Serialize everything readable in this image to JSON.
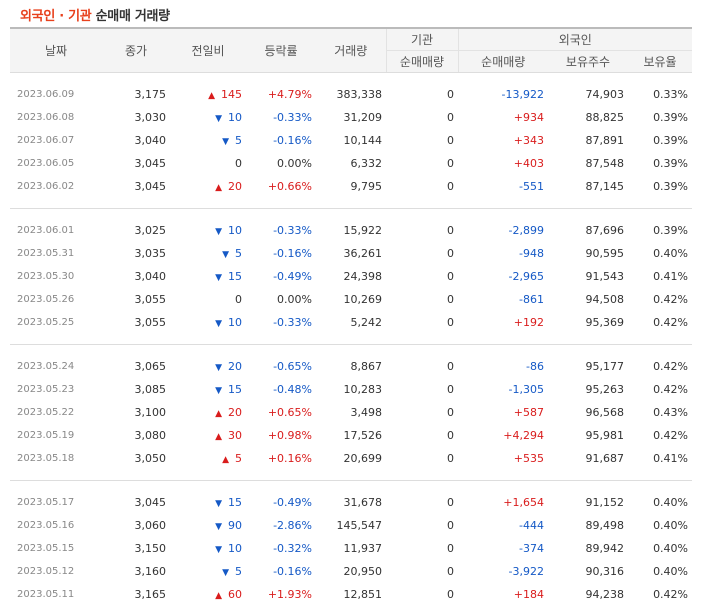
{
  "title": {
    "part1": "외국인 · 기관",
    "part2": "순매매 거래량"
  },
  "headers": {
    "date": "날짜",
    "close": "종가",
    "change": "전일비",
    "rate": "등락률",
    "volume": "거래량",
    "inst_group": "기관",
    "inst_net": "순매매량",
    "foreign_group": "외국인",
    "foreign_net": "순매매량",
    "foreign_hold": "보유주수",
    "foreign_ratio": "보유율"
  },
  "icons": {
    "up": "triangle-up-icon",
    "down": "triangle-down-icon"
  },
  "colors": {
    "up": "#d91c1c",
    "down": "#1559c6",
    "accent": "#e8401c"
  },
  "groups": [
    [
      {
        "date": "2023.06.09",
        "close": "3,175",
        "dir": "up",
        "change": "145",
        "rate": "+4.79%",
        "volume": "383,338",
        "inst": "0",
        "fnet": "-13,922",
        "fhold": "74,903",
        "fratio": "0.33%"
      },
      {
        "date": "2023.06.08",
        "close": "3,030",
        "dir": "down",
        "change": "10",
        "rate": "-0.33%",
        "volume": "31,209",
        "inst": "0",
        "fnet": "+934",
        "fhold": "88,825",
        "fratio": "0.39%"
      },
      {
        "date": "2023.06.07",
        "close": "3,040",
        "dir": "down",
        "change": "5",
        "rate": "-0.16%",
        "volume": "10,144",
        "inst": "0",
        "fnet": "+343",
        "fhold": "87,891",
        "fratio": "0.39%"
      },
      {
        "date": "2023.06.05",
        "close": "3,045",
        "dir": "none",
        "change": "0",
        "rate": "0.00%",
        "volume": "6,332",
        "inst": "0",
        "fnet": "+403",
        "fhold": "87,548",
        "fratio": "0.39%"
      },
      {
        "date": "2023.06.02",
        "close": "3,045",
        "dir": "up",
        "change": "20",
        "rate": "+0.66%",
        "volume": "9,795",
        "inst": "0",
        "fnet": "-551",
        "fhold": "87,145",
        "fratio": "0.39%"
      }
    ],
    [
      {
        "date": "2023.06.01",
        "close": "3,025",
        "dir": "down",
        "change": "10",
        "rate": "-0.33%",
        "volume": "15,922",
        "inst": "0",
        "fnet": "-2,899",
        "fhold": "87,696",
        "fratio": "0.39%"
      },
      {
        "date": "2023.05.31",
        "close": "3,035",
        "dir": "down",
        "change": "5",
        "rate": "-0.16%",
        "volume": "36,261",
        "inst": "0",
        "fnet": "-948",
        "fhold": "90,595",
        "fratio": "0.40%"
      },
      {
        "date": "2023.05.30",
        "close": "3,040",
        "dir": "down",
        "change": "15",
        "rate": "-0.49%",
        "volume": "24,398",
        "inst": "0",
        "fnet": "-2,965",
        "fhold": "91,543",
        "fratio": "0.41%"
      },
      {
        "date": "2023.05.26",
        "close": "3,055",
        "dir": "none",
        "change": "0",
        "rate": "0.00%",
        "volume": "10,269",
        "inst": "0",
        "fnet": "-861",
        "fhold": "94,508",
        "fratio": "0.42%"
      },
      {
        "date": "2023.05.25",
        "close": "3,055",
        "dir": "down",
        "change": "10",
        "rate": "-0.33%",
        "volume": "5,242",
        "inst": "0",
        "fnet": "+192",
        "fhold": "95,369",
        "fratio": "0.42%"
      }
    ],
    [
      {
        "date": "2023.05.24",
        "close": "3,065",
        "dir": "down",
        "change": "20",
        "rate": "-0.65%",
        "volume": "8,867",
        "inst": "0",
        "fnet": "-86",
        "fhold": "95,177",
        "fratio": "0.42%"
      },
      {
        "date": "2023.05.23",
        "close": "3,085",
        "dir": "down",
        "change": "15",
        "rate": "-0.48%",
        "volume": "10,283",
        "inst": "0",
        "fnet": "-1,305",
        "fhold": "95,263",
        "fratio": "0.42%"
      },
      {
        "date": "2023.05.22",
        "close": "3,100",
        "dir": "up",
        "change": "20",
        "rate": "+0.65%",
        "volume": "3,498",
        "inst": "0",
        "fnet": "+587",
        "fhold": "96,568",
        "fratio": "0.43%"
      },
      {
        "date": "2023.05.19",
        "close": "3,080",
        "dir": "up",
        "change": "30",
        "rate": "+0.98%",
        "volume": "17,526",
        "inst": "0",
        "fnet": "+4,294",
        "fhold": "95,981",
        "fratio": "0.42%"
      },
      {
        "date": "2023.05.18",
        "close": "3,050",
        "dir": "up",
        "change": "5",
        "rate": "+0.16%",
        "volume": "20,699",
        "inst": "0",
        "fnet": "+535",
        "fhold": "91,687",
        "fratio": "0.41%"
      }
    ],
    [
      {
        "date": "2023.05.17",
        "close": "3,045",
        "dir": "down",
        "change": "15",
        "rate": "-0.49%",
        "volume": "31,678",
        "inst": "0",
        "fnet": "+1,654",
        "fhold": "91,152",
        "fratio": "0.40%"
      },
      {
        "date": "2023.05.16",
        "close": "3,060",
        "dir": "down",
        "change": "90",
        "rate": "-2.86%",
        "volume": "145,547",
        "inst": "0",
        "fnet": "-444",
        "fhold": "89,498",
        "fratio": "0.40%"
      },
      {
        "date": "2023.05.15",
        "close": "3,150",
        "dir": "down",
        "change": "10",
        "rate": "-0.32%",
        "volume": "11,937",
        "inst": "0",
        "fnet": "-374",
        "fhold": "89,942",
        "fratio": "0.40%"
      },
      {
        "date": "2023.05.12",
        "close": "3,160",
        "dir": "down",
        "change": "5",
        "rate": "-0.16%",
        "volume": "20,950",
        "inst": "0",
        "fnet": "-3,922",
        "fhold": "90,316",
        "fratio": "0.40%"
      },
      {
        "date": "2023.05.11",
        "close": "3,165",
        "dir": "up",
        "change": "60",
        "rate": "+1.93%",
        "volume": "12,851",
        "inst": "0",
        "fnet": "+184",
        "fhold": "94,238",
        "fratio": "0.42%"
      }
    ]
  ]
}
